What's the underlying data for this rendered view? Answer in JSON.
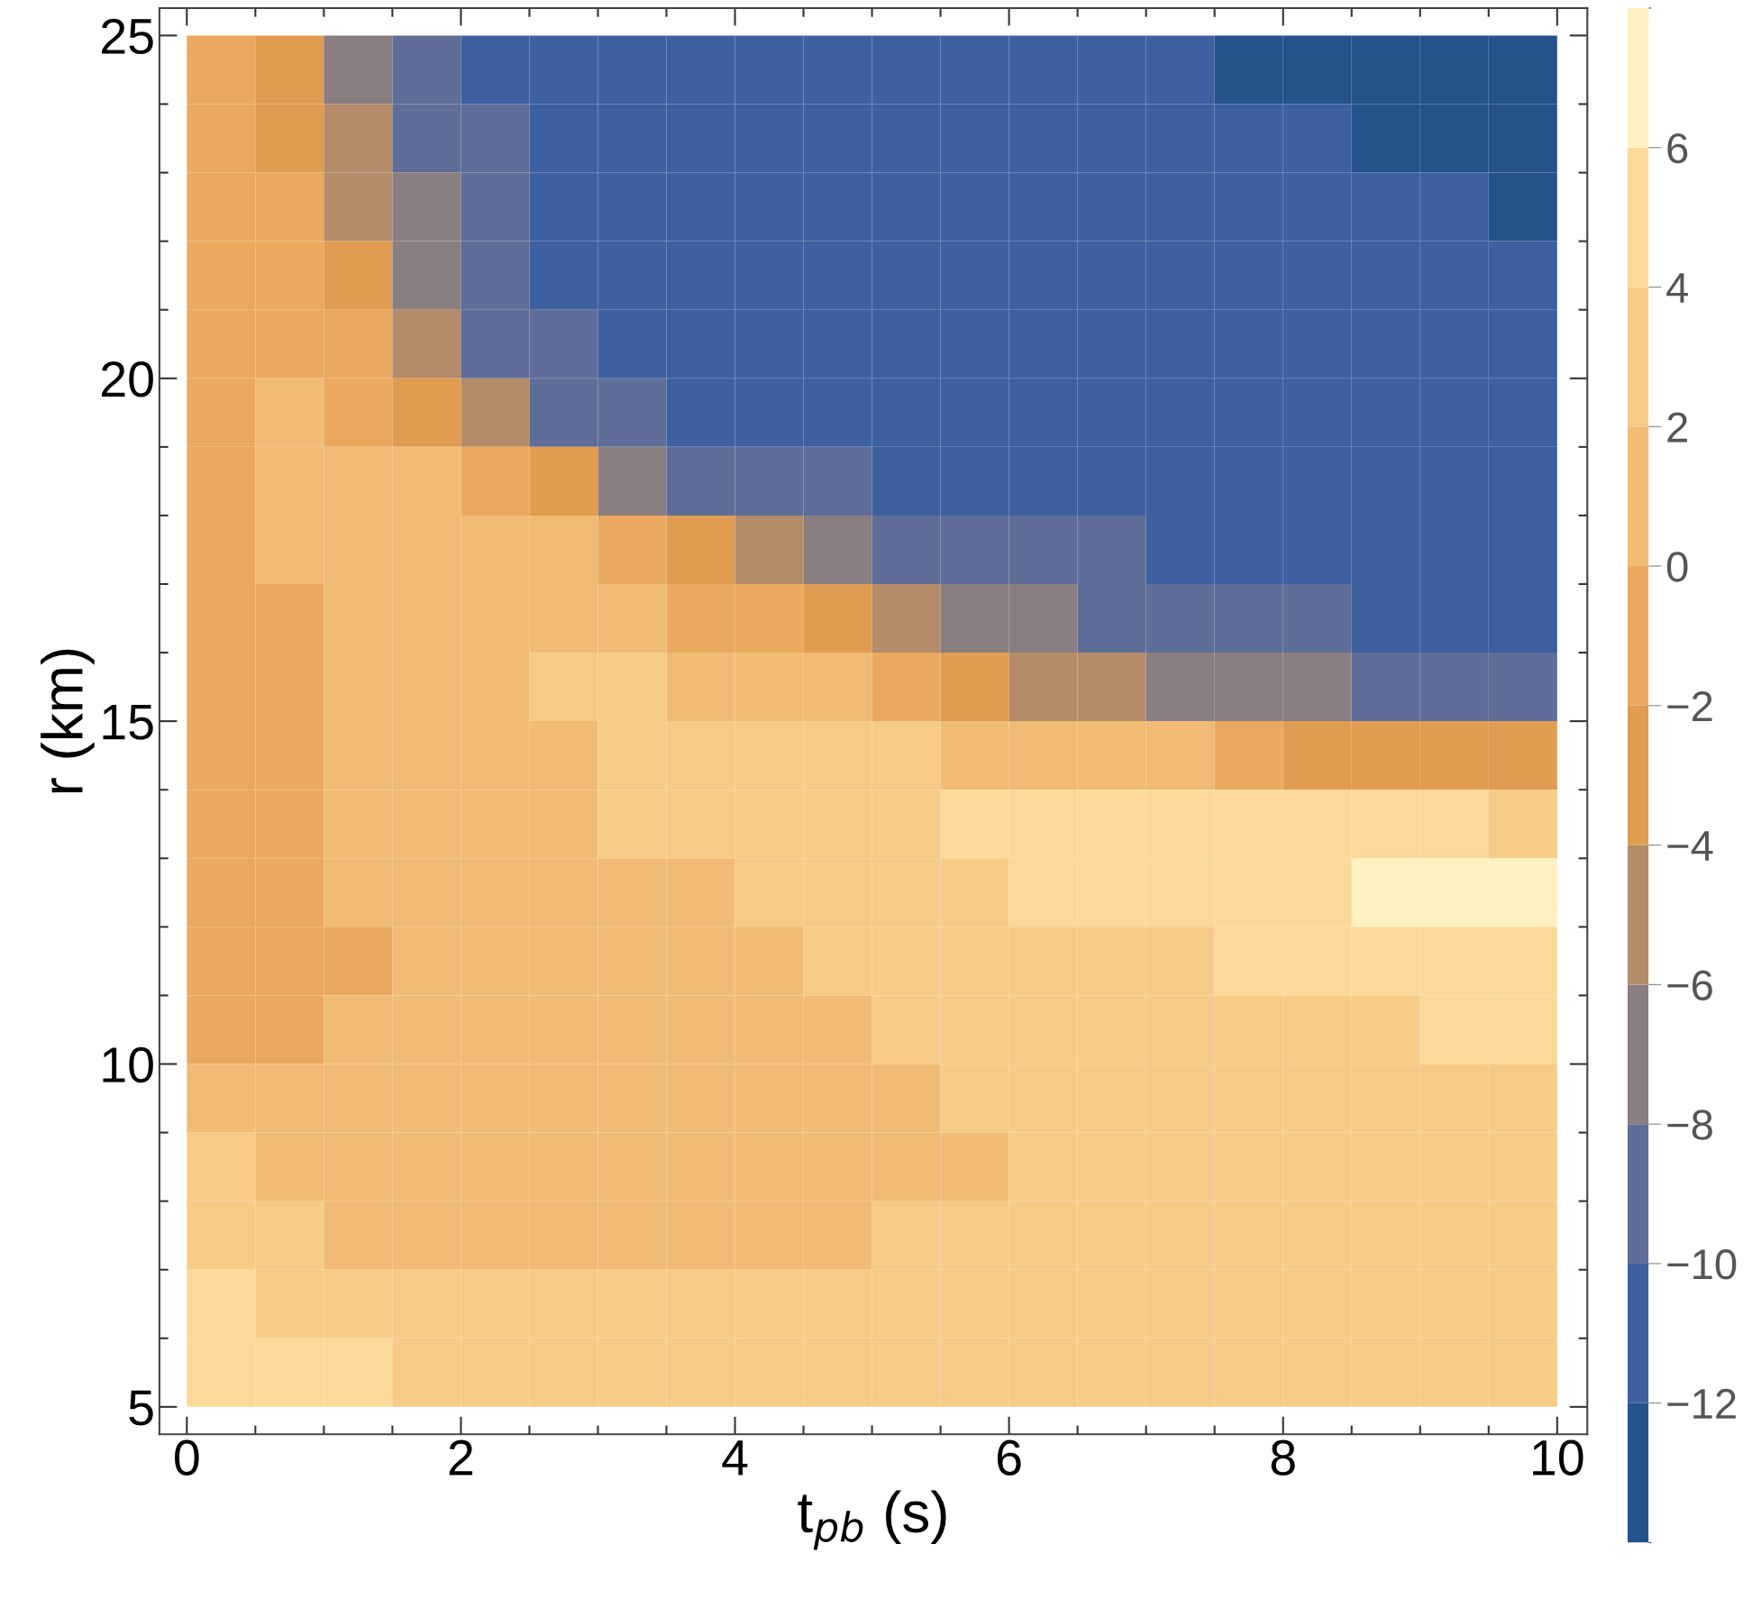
{
  "chart_data": {
    "type": "heatmap",
    "xlabel": "t$_{pb}$ (s)",
    "ylabel": "r (km)",
    "x": [
      0.25,
      0.75,
      1.25,
      1.75,
      2.25,
      2.75,
      3.25,
      3.75,
      4.25,
      4.75,
      5.25,
      5.75,
      6.25,
      6.75,
      7.25,
      7.75,
      8.25,
      8.75,
      9.25,
      9.75
    ],
    "y": [
      24.5,
      23.5,
      22.5,
      21.5,
      20.5,
      19.5,
      18.5,
      17.5,
      16.5,
      15.5,
      14.5,
      13.5,
      12.5,
      11.5,
      10.5,
      9.5,
      8.5,
      7.5,
      6.5,
      5.5
    ],
    "cells": [
      [
        -1,
        -3,
        -7,
        -9,
        -11,
        -11,
        -11,
        -11,
        -11,
        -11,
        -11,
        -11,
        -11,
        -11,
        -11,
        -13,
        -13,
        -13,
        -13,
        -13
      ],
      [
        -1,
        -3,
        -5,
        -9,
        -9,
        -11,
        -11,
        -11,
        -11,
        -11,
        -11,
        -11,
        -11,
        -11,
        -11,
        -11,
        -11,
        -13,
        -13,
        -13
      ],
      [
        -1,
        -1,
        -5,
        -7,
        -9,
        -11,
        -11,
        -11,
        -11,
        -11,
        -11,
        -11,
        -11,
        -11,
        -11,
        -11,
        -11,
        -11,
        -11,
        -13
      ],
      [
        -1,
        -1,
        -3,
        -7,
        -9,
        -11,
        -11,
        -11,
        -11,
        -11,
        -11,
        -11,
        -11,
        -11,
        -11,
        -11,
        -11,
        -11,
        -11,
        -11
      ],
      [
        -1,
        -1,
        -1,
        -5,
        -9,
        -9,
        -11,
        -11,
        -11,
        -11,
        -11,
        -11,
        -11,
        -11,
        -11,
        -11,
        -11,
        -11,
        -11,
        -11
      ],
      [
        -1,
        1,
        -1,
        -3,
        -5,
        -9,
        -9,
        -11,
        -11,
        -11,
        -11,
        -11,
        -11,
        -11,
        -11,
        -11,
        -11,
        -11,
        -11,
        -11
      ],
      [
        -1,
        1,
        1,
        1,
        -1,
        -3,
        -7,
        -9,
        -9,
        -9,
        -11,
        -11,
        -11,
        -11,
        -11,
        -11,
        -11,
        -11,
        -11,
        -11
      ],
      [
        -1,
        1,
        1,
        1,
        1,
        1,
        -1,
        -3,
        -5,
        -7,
        -9,
        -9,
        -9,
        -9,
        -11,
        -11,
        -11,
        -11,
        -11,
        -11
      ],
      [
        -1,
        -1,
        1,
        1,
        1,
        1,
        1,
        -1,
        -1,
        -3,
        -5,
        -7,
        -7,
        -9,
        -9,
        -9,
        -9,
        -11,
        -11,
        -11
      ],
      [
        -1,
        -1,
        1,
        1,
        1,
        3,
        3,
        1,
        1,
        1,
        -1,
        -3,
        -5,
        -5,
        -7,
        -7,
        -7,
        -9,
        -9,
        -9
      ],
      [
        -1,
        -1,
        1,
        1,
        1,
        1,
        3,
        3,
        3,
        3,
        3,
        1,
        1,
        1,
        1,
        -1,
        -3,
        -3,
        -3,
        -3
      ],
      [
        -1,
        -1,
        1,
        1,
        1,
        1,
        3,
        3,
        3,
        3,
        3,
        5,
        5,
        5,
        5,
        5,
        5,
        5,
        5,
        3
      ],
      [
        -1,
        -1,
        1,
        1,
        1,
        1,
        1,
        1,
        3,
        3,
        3,
        3,
        5,
        5,
        5,
        5,
        5,
        7,
        7,
        7
      ],
      [
        -1,
        -1,
        -1,
        1,
        1,
        1,
        1,
        1,
        1,
        3,
        3,
        3,
        3,
        3,
        3,
        5,
        5,
        5,
        5,
        5
      ],
      [
        -1,
        -1,
        1,
        1,
        1,
        1,
        1,
        1,
        1,
        1,
        3,
        3,
        3,
        3,
        3,
        3,
        3,
        3,
        5,
        5
      ],
      [
        1,
        1,
        1,
        1,
        1,
        1,
        1,
        1,
        1,
        1,
        1,
        3,
        3,
        3,
        3,
        3,
        3,
        3,
        3,
        3
      ],
      [
        3,
        1,
        1,
        1,
        1,
        1,
        1,
        1,
        1,
        1,
        1,
        1,
        3,
        3,
        3,
        3,
        3,
        3,
        3,
        3
      ],
      [
        3,
        3,
        1,
        1,
        1,
        1,
        1,
        1,
        1,
        1,
        3,
        3,
        3,
        3,
        3,
        3,
        3,
        3,
        3,
        3
      ],
      [
        5,
        3,
        3,
        3,
        3,
        3,
        3,
        3,
        3,
        3,
        3,
        3,
        3,
        3,
        3,
        3,
        3,
        3,
        3,
        3
      ],
      [
        5,
        5,
        5,
        3,
        3,
        3,
        3,
        3,
        3,
        3,
        3,
        3,
        3,
        3,
        3,
        3,
        3,
        3,
        3,
        3
      ]
    ],
    "colors": [
      "#25528a",
      "#3d60a0",
      "#5e6e98",
      "#8a7e80",
      "#b48c6a",
      "#e09c50",
      "#eaa95e",
      "#f0bb74",
      "#f6cb86",
      "#fbd998",
      "#fef1c2"
    ],
    "clim": [
      -14,
      8
    ],
    "cticks": [
      -12,
      -10,
      -8,
      -6,
      -4,
      -2,
      0,
      2,
      4,
      6
    ],
    "xlim": [
      -0.2,
      10.22
    ],
    "ylim": [
      4.6,
      25.4
    ],
    "xticks": [
      0,
      {
        "value": 0.5,
        "label": null
      },
      {
        "value": 1,
        "label": null
      },
      {
        "value": 1.5,
        "label": null
      },
      2,
      {
        "value": 2.5,
        "label": null
      },
      {
        "value": 3,
        "label": null
      },
      {
        "value": 3.5,
        "label": null
      },
      4,
      {
        "value": 4.5,
        "label": null
      },
      {
        "value": 5,
        "label": null
      },
      {
        "value": 5.5,
        "label": null
      },
      6,
      {
        "value": 6.5,
        "label": null
      },
      {
        "value": 7,
        "label": null
      },
      {
        "value": 7.5,
        "label": null
      },
      8,
      {
        "value": 8.5,
        "label": null
      },
      {
        "value": 9,
        "label": null
      },
      {
        "value": 9.5,
        "label": null
      },
      10
    ],
    "yticks": [
      5,
      {
        "value": 6,
        "label": null
      },
      {
        "value": 7,
        "label": null
      },
      {
        "value": 8,
        "label": null
      },
      {
        "value": 9,
        "label": null
      },
      10,
      {
        "value": 11,
        "label": null
      },
      {
        "value": 12,
        "label": null
      },
      {
        "value": 13,
        "label": null
      },
      {
        "value": 14,
        "label": null
      },
      15,
      {
        "value": 16,
        "label": null
      },
      {
        "value": 17,
        "label": null
      },
      {
        "value": 18,
        "label": null
      },
      {
        "value": 19,
        "label": null
      },
      20,
      {
        "value": 21,
        "label": null
      },
      {
        "value": 22,
        "label": null
      },
      {
        "value": 23,
        "label": null
      },
      {
        "value": 24,
        "label": null
      },
      25
    ],
    "grid": false
  }
}
